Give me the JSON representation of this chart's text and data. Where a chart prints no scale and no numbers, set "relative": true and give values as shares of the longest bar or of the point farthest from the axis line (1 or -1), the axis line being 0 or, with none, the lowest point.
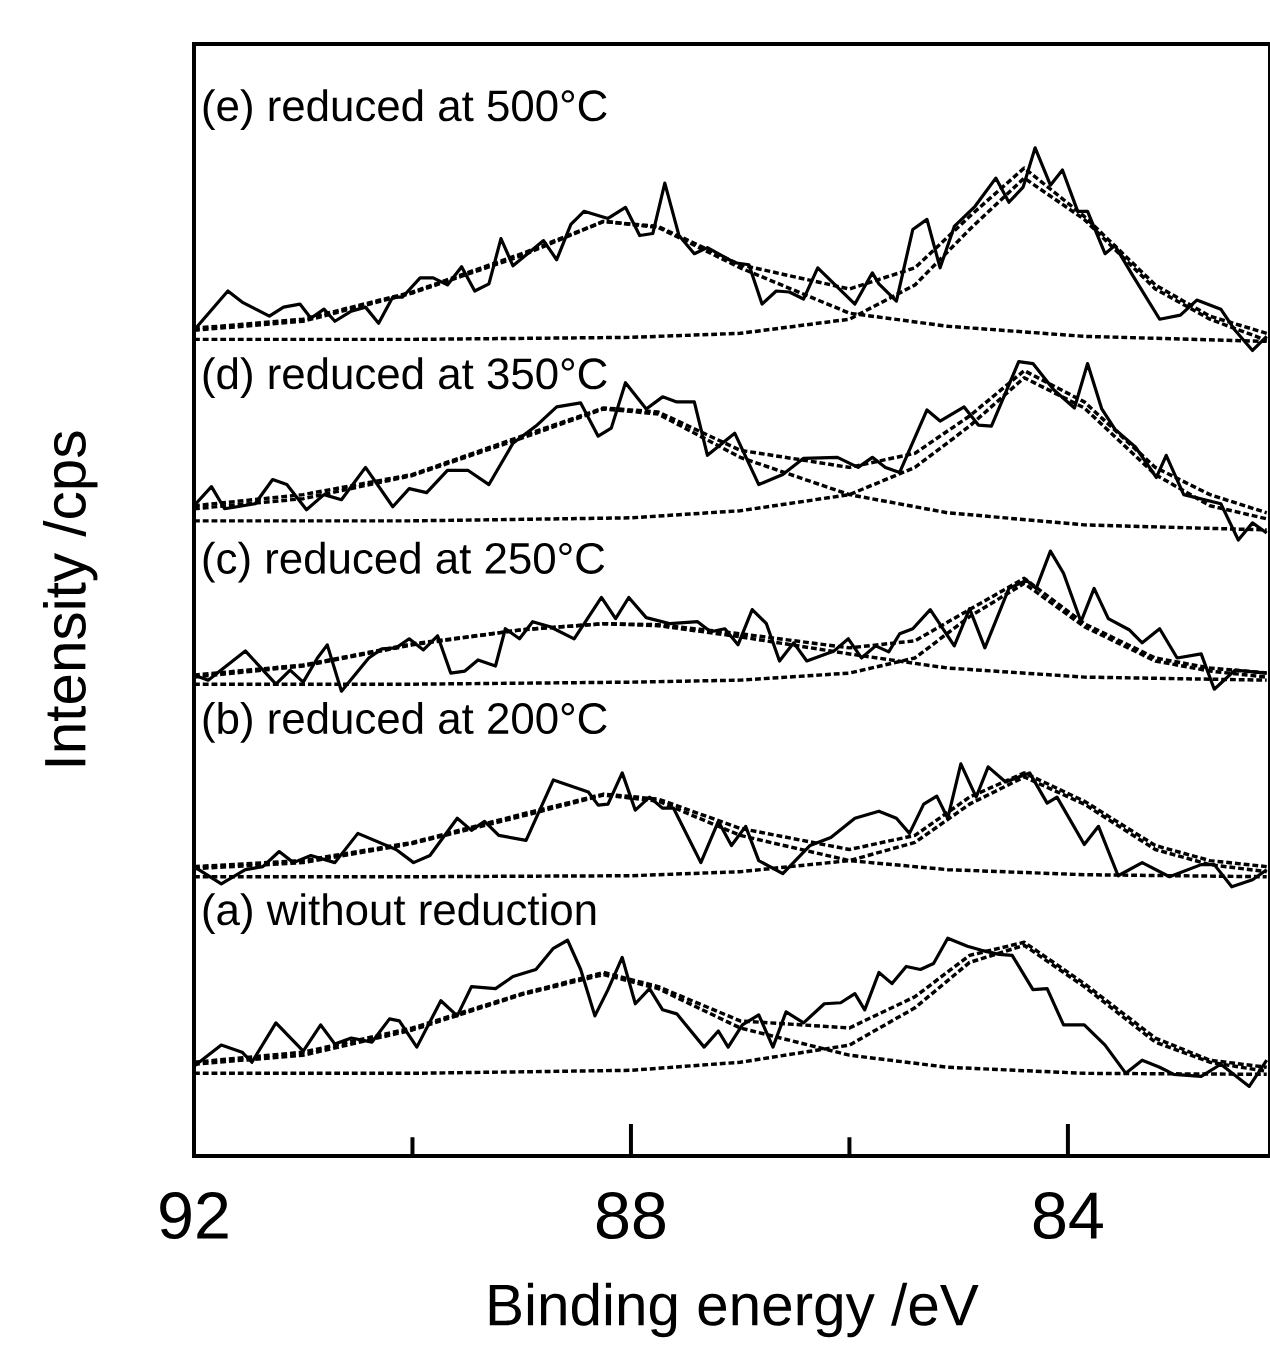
{
  "chart_data": {
    "type": "line",
    "relative": true,
    "xlabel": "Binding energy /eV",
    "ylabel": "Intensity /cps",
    "xlim": [
      92,
      82.15
    ],
    "xticks": [
      92,
      {
        "value": 90,
        "label": null
      },
      88,
      {
        "value": 86,
        "label": null
      },
      84
    ],
    "tick_labels": "x",
    "series": [
      {
        "name": "(e) reduced at 500°C",
        "type": "line",
        "color": "#000000",
        "line_style": "solid",
        "x": [
          92.0,
          91.69,
          91.56,
          91.31,
          91.18,
          91.03,
          90.93,
          90.81,
          90.71,
          90.56,
          90.43,
          90.31,
          90.18,
          90.09,
          89.93,
          89.81,
          89.68,
          89.55,
          89.43,
          89.3,
          89.19,
          89.08,
          88.8,
          88.68,
          88.55,
          88.43,
          88.21,
          88.05,
          87.92,
          87.8,
          87.69,
          87.56,
          87.42,
          87.3,
          87.05,
          86.92,
          86.8,
          86.67,
          86.55,
          86.42,
          86.29,
          86.14,
          85.95,
          85.79,
          85.73,
          85.57,
          85.42,
          85.29,
          85.17,
          85.04,
          84.85,
          84.66,
          84.54,
          84.41,
          84.3,
          84.16,
          84.05,
          83.91,
          83.82,
          83.66,
          83.57,
          83.41,
          83.16,
          82.97,
          82.82,
          82.6,
          82.47,
          82.31,
          82.18
        ],
        "values": [
          0.819,
          0.858,
          0.847,
          0.833,
          0.842,
          0.845,
          0.831,
          0.84,
          0.828,
          0.838,
          0.842,
          0.826,
          0.852,
          0.852,
          0.871,
          0.871,
          0.864,
          0.882,
          0.858,
          0.865,
          0.91,
          0.883,
          0.908,
          0.889,
          0.924,
          0.937,
          0.93,
          0.941,
          0.913,
          0.915,
          0.965,
          0.913,
          0.895,
          0.901,
          0.886,
          0.884,
          0.845,
          0.858,
          0.857,
          0.85,
          0.881,
          0.865,
          0.845,
          0.876,
          0.865,
          0.848,
          0.919,
          0.929,
          0.881,
          0.922,
          0.942,
          0.97,
          0.946,
          0.961,
          1.0,
          0.963,
          0.978,
          0.937,
          0.937,
          0.895,
          0.903,
          0.874,
          0.83,
          0.834,
          0.849,
          0.84,
          0.819,
          0.799,
          0.813
        ]
      },
      {
        "type": "line",
        "color": "#000000",
        "line_style": "dashed",
        "x": [
          92,
          91,
          90,
          89,
          88.25,
          87.75,
          87,
          86,
          85.4,
          84.9,
          84.4,
          83.85,
          83.2,
          82.7,
          82.18
        ],
        "values": [
          0.821,
          0.83,
          0.857,
          0.895,
          0.927,
          0.922,
          0.884,
          0.86,
          0.881,
          0.932,
          0.98,
          0.932,
          0.864,
          0.833,
          0.816
        ]
      },
      {
        "type": "line",
        "color": "#000000",
        "line_style": "dashed",
        "x": [
          92,
          91,
          90,
          89,
          88.25,
          87.75,
          87,
          86,
          85.1,
          83.85,
          82.18
        ],
        "values": [
          0.819,
          0.828,
          0.856,
          0.893,
          0.927,
          0.921,
          0.881,
          0.836,
          0.823,
          0.813,
          0.808
        ]
      },
      {
        "type": "line",
        "color": "#000000",
        "line_style": "dashed",
        "x": [
          92,
          90,
          88,
          87,
          86,
          85.4,
          84.9,
          84.4,
          83.85,
          83.2,
          82.7,
          82.18
        ],
        "values": [
          0.81,
          0.81,
          0.812,
          0.816,
          0.83,
          0.864,
          0.919,
          0.97,
          0.929,
          0.86,
          0.83,
          0.809
        ]
      },
      {
        "name": "(d) reduced at 350°C",
        "type": "line",
        "color": "#000000",
        "line_style": "solid",
        "x": [
          92.0,
          91.84,
          91.72,
          91.44,
          91.28,
          91.15,
          90.97,
          90.81,
          90.65,
          90.43,
          90.18,
          90.03,
          89.87,
          89.68,
          89.49,
          89.3,
          89.08,
          88.87,
          88.68,
          88.46,
          88.3,
          88.18,
          88.05,
          87.86,
          87.71,
          87.58,
          87.42,
          87.3,
          87.05,
          86.83,
          86.61,
          86.42,
          86.11,
          85.92,
          85.79,
          85.67,
          85.54,
          85.29,
          85.17,
          84.95,
          84.82,
          84.7,
          84.45,
          84.32,
          84.13,
          83.94,
          83.82,
          83.69,
          83.57,
          83.38,
          83.19,
          83.1,
          82.94,
          82.6,
          82.44,
          82.31,
          82.18
        ],
        "values": [
          0.645,
          0.664,
          0.642,
          0.647,
          0.671,
          0.666,
          0.641,
          0.656,
          0.651,
          0.683,
          0.644,
          0.662,
          0.658,
          0.68,
          0.68,
          0.666,
          0.707,
          0.724,
          0.743,
          0.747,
          0.714,
          0.722,
          0.767,
          0.741,
          0.753,
          0.748,
          0.748,
          0.695,
          0.717,
          0.666,
          0.676,
          0.692,
          0.693,
          0.683,
          0.693,
          0.683,
          0.678,
          0.74,
          0.729,
          0.743,
          0.725,
          0.724,
          0.788,
          0.786,
          0.76,
          0.742,
          0.786,
          0.741,
          0.721,
          0.703,
          0.673,
          0.695,
          0.656,
          0.647,
          0.611,
          0.628,
          0.618
        ]
      },
      {
        "type": "line",
        "color": "#000000",
        "line_style": "dashed",
        "x": [
          92,
          91,
          90,
          89,
          88.25,
          87.75,
          87,
          86,
          85.4,
          84.9,
          84.4,
          83.85,
          83.2,
          82.7,
          82.18
        ],
        "values": [
          0.645,
          0.656,
          0.676,
          0.714,
          0.742,
          0.738,
          0.7,
          0.683,
          0.697,
          0.734,
          0.779,
          0.748,
          0.683,
          0.656,
          0.638
        ]
      },
      {
        "type": "line",
        "color": "#000000",
        "line_style": "dashed",
        "x": [
          92,
          91,
          90,
          89,
          88.25,
          87.75,
          87,
          86,
          85.1,
          83.85,
          82.18
        ],
        "values": [
          0.642,
          0.652,
          0.675,
          0.712,
          0.741,
          0.736,
          0.693,
          0.656,
          0.638,
          0.626,
          0.621
        ]
      },
      {
        "type": "line",
        "color": "#000000",
        "line_style": "dashed",
        "x": [
          92,
          90,
          88,
          87,
          86,
          85.4,
          84.9,
          84.4,
          83.85,
          83.2,
          82.7,
          82.18
        ],
        "values": [
          0.63,
          0.63,
          0.633,
          0.64,
          0.656,
          0.683,
          0.724,
          0.772,
          0.742,
          0.676,
          0.645,
          0.632
        ]
      },
      {
        "name": "(c) reduced at 250°C",
        "type": "line",
        "color": "#000000",
        "line_style": "solid",
        "x": [
          92.0,
          91.87,
          91.53,
          91.25,
          91.12,
          91.0,
          90.87,
          90.78,
          90.65,
          90.4,
          90.28,
          90.15,
          90.03,
          89.9,
          89.77,
          89.65,
          89.52,
          89.4,
          89.24,
          89.15,
          89.02,
          88.9,
          88.74,
          88.52,
          88.27,
          88.14,
          88.02,
          87.86,
          87.64,
          87.39,
          87.27,
          87.14,
          87.02,
          86.89,
          86.76,
          86.64,
          86.51,
          86.39,
          86.14,
          86.01,
          85.89,
          85.76,
          85.64,
          85.54,
          85.42,
          85.26,
          85.04,
          84.9,
          84.76,
          84.54,
          84.38,
          84.29,
          84.16,
          84.04,
          83.88,
          83.76,
          83.63,
          83.44,
          83.32,
          83.16,
          83.0,
          82.78,
          82.66,
          82.47,
          82.18
        ],
        "values": [
          0.477,
          0.472,
          0.501,
          0.468,
          0.482,
          0.47,
          0.494,
          0.507,
          0.461,
          0.494,
          0.503,
          0.504,
          0.513,
          0.502,
          0.516,
          0.479,
          0.481,
          0.492,
          0.486,
          0.523,
          0.513,
          0.53,
          0.525,
          0.513,
          0.554,
          0.533,
          0.554,
          0.534,
          0.528,
          0.53,
          0.52,
          0.523,
          0.507,
          0.542,
          0.528,
          0.491,
          0.509,
          0.491,
          0.501,
          0.513,
          0.494,
          0.506,
          0.5,
          0.518,
          0.523,
          0.542,
          0.506,
          0.543,
          0.504,
          0.563,
          0.571,
          0.563,
          0.6,
          0.578,
          0.53,
          0.563,
          0.533,
          0.522,
          0.509,
          0.523,
          0.494,
          0.498,
          0.463,
          0.482,
          0.479
        ]
      },
      {
        "type": "line",
        "color": "#000000",
        "line_style": "dashed",
        "x": [
          92,
          91,
          90,
          89,
          88.25,
          87.75,
          87,
          86,
          85.4,
          84.9,
          84.4,
          83.85,
          83.2,
          82.7,
          82.18
        ],
        "values": [
          0.477,
          0.487,
          0.508,
          0.522,
          0.528,
          0.527,
          0.518,
          0.504,
          0.511,
          0.542,
          0.573,
          0.528,
          0.494,
          0.484,
          0.479
        ]
      },
      {
        "type": "line",
        "color": "#000000",
        "line_style": "dashed",
        "x": [
          92,
          91,
          90,
          89,
          88.25,
          87.75,
          87,
          86,
          85.1,
          83.85,
          82.18
        ],
        "values": [
          0.475,
          0.486,
          0.507,
          0.522,
          0.528,
          0.526,
          0.515,
          0.498,
          0.484,
          0.475,
          0.472
        ]
      },
      {
        "type": "line",
        "color": "#000000",
        "line_style": "dashed",
        "x": [
          92,
          90,
          88,
          87,
          86,
          85.4,
          84.9,
          84.4,
          83.85,
          83.2,
          82.7,
          82.18
        ],
        "values": [
          0.468,
          0.468,
          0.47,
          0.472,
          0.479,
          0.494,
          0.535,
          0.568,
          0.525,
          0.491,
          0.481,
          0.475
        ]
      },
      {
        "name": "(b) reduced at 200°C",
        "type": "line",
        "color": "#000000",
        "line_style": "solid",
        "x": [
          92.0,
          91.75,
          91.53,
          91.37,
          91.22,
          91.09,
          90.93,
          90.71,
          90.5,
          90.15,
          89.99,
          89.84,
          89.59,
          89.46,
          89.34,
          89.21,
          88.96,
          88.71,
          88.39,
          88.3,
          88.21,
          88.08,
          87.96,
          87.83,
          87.71,
          87.61,
          87.36,
          87.2,
          87.08,
          86.95,
          86.83,
          86.61,
          86.36,
          86.17,
          85.95,
          85.73,
          85.57,
          85.45,
          85.32,
          85.2,
          85.1,
          84.98,
          84.84,
          84.73,
          84.57,
          84.35,
          84.19,
          84.1,
          83.85,
          83.72,
          83.54,
          83.32,
          83.07,
          82.78,
          82.66,
          82.5,
          82.31,
          82.18
        ],
        "values": [
          0.287,
          0.27,
          0.284,
          0.287,
          0.302,
          0.291,
          0.298,
          0.291,
          0.32,
          0.304,
          0.291,
          0.298,
          0.335,
          0.323,
          0.332,
          0.318,
          0.313,
          0.373,
          0.361,
          0.348,
          0.349,
          0.38,
          0.343,
          0.356,
          0.345,
          0.345,
          0.291,
          0.332,
          0.308,
          0.327,
          0.293,
          0.28,
          0.308,
          0.316,
          0.335,
          0.342,
          0.335,
          0.32,
          0.349,
          0.357,
          0.335,
          0.389,
          0.356,
          0.386,
          0.371,
          0.38,
          0.35,
          0.356,
          0.309,
          0.327,
          0.278,
          0.291,
          0.277,
          0.289,
          0.289,
          0.267,
          0.274,
          0.284
        ]
      },
      {
        "type": "line",
        "color": "#000000",
        "line_style": "dashed",
        "x": [
          92,
          91,
          90,
          89,
          88.25,
          87.75,
          87,
          86,
          85.4,
          84.9,
          84.4,
          83.85,
          83.2,
          82.7,
          82.18
        ],
        "values": [
          0.287,
          0.293,
          0.311,
          0.339,
          0.359,
          0.354,
          0.325,
          0.304,
          0.318,
          0.356,
          0.38,
          0.352,
          0.308,
          0.293,
          0.287
        ]
      },
      {
        "type": "line",
        "color": "#000000",
        "line_style": "dashed",
        "x": [
          92,
          91,
          90,
          89,
          88.25,
          87.75,
          87,
          86,
          85.1,
          83.85,
          82.18
        ],
        "values": [
          0.285,
          0.291,
          0.31,
          0.337,
          0.358,
          0.352,
          0.318,
          0.293,
          0.284,
          0.279,
          0.277
        ]
      },
      {
        "type": "line",
        "color": "#000000",
        "line_style": "dashed",
        "x": [
          92,
          90,
          88,
          87,
          86,
          85.4,
          84.9,
          84.4,
          83.85,
          83.2,
          82.7,
          82.18
        ],
        "values": [
          0.277,
          0.277,
          0.278,
          0.282,
          0.293,
          0.311,
          0.349,
          0.376,
          0.349,
          0.304,
          0.289,
          0.282
        ]
      },
      {
        "name": "(a) without reduction",
        "type": "line",
        "color": "#000000",
        "line_style": "solid",
        "x": [
          92.0,
          91.75,
          91.56,
          91.47,
          91.25,
          91.0,
          90.84,
          90.71,
          90.56,
          90.37,
          90.21,
          90.12,
          89.96,
          89.74,
          89.59,
          89.46,
          89.24,
          89.08,
          88.87,
          88.71,
          88.58,
          88.46,
          88.33,
          88.21,
          88.08,
          87.96,
          87.83,
          87.71,
          87.58,
          87.33,
          87.2,
          87.11,
          86.98,
          86.83,
          86.7,
          86.58,
          86.42,
          86.23,
          86.08,
          85.95,
          85.86,
          85.73,
          85.61,
          85.48,
          85.35,
          85.23,
          85.1,
          84.92,
          84.79,
          84.63,
          84.51,
          84.32,
          84.19,
          84.04,
          83.85,
          83.66,
          83.47,
          83.32,
          83.16,
          83.03,
          82.78,
          82.6,
          82.34,
          82.18
        ],
        "values": [
          0.089,
          0.11,
          0.103,
          0.093,
          0.132,
          0.104,
          0.13,
          0.111,
          0.117,
          0.113,
          0.136,
          0.134,
          0.108,
          0.154,
          0.139,
          0.168,
          0.166,
          0.178,
          0.185,
          0.206,
          0.214,
          0.185,
          0.139,
          0.165,
          0.197,
          0.151,
          0.166,
          0.145,
          0.141,
          0.108,
          0.124,
          0.108,
          0.13,
          0.14,
          0.108,
          0.143,
          0.132,
          0.151,
          0.152,
          0.161,
          0.145,
          0.182,
          0.171,
          0.188,
          0.185,
          0.191,
          0.216,
          0.208,
          0.204,
          0.2,
          0.199,
          0.165,
          0.166,
          0.13,
          0.13,
          0.11,
          0.082,
          0.095,
          0.088,
          0.081,
          0.079,
          0.091,
          0.069,
          0.095
        ]
      },
      {
        "type": "line",
        "color": "#000000",
        "line_style": "dashed",
        "x": [
          92,
          91,
          90,
          89,
          88.25,
          87.75,
          87,
          86,
          85.4,
          84.9,
          84.4,
          83.85,
          83.2,
          82.7,
          82.18
        ],
        "values": [
          0.093,
          0.103,
          0.127,
          0.161,
          0.182,
          0.168,
          0.134,
          0.127,
          0.158,
          0.199,
          0.212,
          0.171,
          0.117,
          0.095,
          0.088
        ]
      },
      {
        "type": "line",
        "color": "#000000",
        "line_style": "dashed",
        "x": [
          92,
          91,
          90,
          89,
          88.25,
          87.75,
          87,
          86,
          85.1,
          83.85,
          82.18
        ],
        "values": [
          0.091,
          0.1,
          0.125,
          0.16,
          0.18,
          0.166,
          0.127,
          0.1,
          0.088,
          0.082,
          0.081
        ]
      },
      {
        "type": "line",
        "color": "#000000",
        "line_style": "dashed",
        "x": [
          92,
          90,
          88,
          87,
          86,
          85.4,
          84.9,
          84.4,
          83.85,
          83.2,
          82.7,
          82.18
        ],
        "values": [
          0.082,
          0.082,
          0.085,
          0.093,
          0.11,
          0.147,
          0.192,
          0.209,
          0.168,
          0.113,
          0.093,
          0.084
        ]
      }
    ]
  }
}
